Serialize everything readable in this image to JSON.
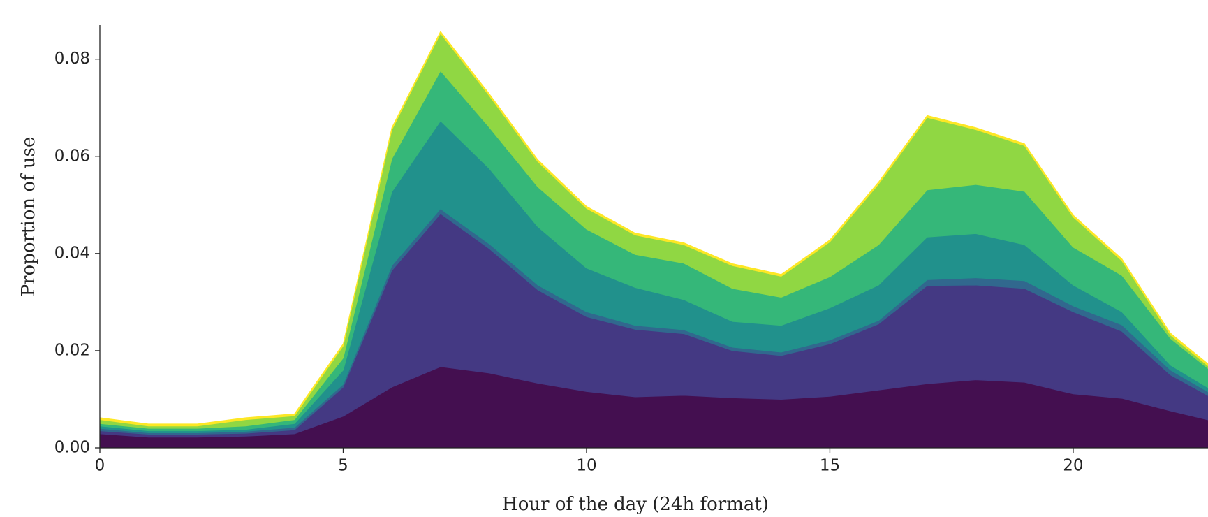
{
  "chart_data": {
    "type": "stacked_area",
    "xlabel": "Hour of the day (24h format)",
    "ylabel": "Proportion of use",
    "x": [
      0,
      1,
      2,
      3,
      4,
      5,
      6,
      7,
      8,
      9,
      10,
      11,
      12,
      13,
      14,
      15,
      16,
      17,
      18,
      19,
      20,
      21,
      22,
      23
    ],
    "series": [
      {
        "color": "#440f50",
        "values": [
          0.0029,
          0.0022,
          0.0022,
          0.0024,
          0.0029,
          0.0065,
          0.0125,
          0.0167,
          0.0154,
          0.0133,
          0.0116,
          0.0105,
          0.0108,
          0.0103,
          0.01,
          0.0106,
          0.0119,
          0.0132,
          0.014,
          0.0135,
          0.0111,
          0.0102,
          0.0076,
          0.0052
        ]
      },
      {
        "color": "#443983",
        "values": [
          0.0006,
          0.0006,
          0.0006,
          0.0006,
          0.0008,
          0.006,
          0.024,
          0.0315,
          0.0256,
          0.0192,
          0.0154,
          0.0139,
          0.0127,
          0.0097,
          0.009,
          0.0108,
          0.0136,
          0.0202,
          0.0195,
          0.0193,
          0.0169,
          0.0138,
          0.0074,
          0.0043
        ]
      },
      {
        "color": "#31688e",
        "values": [
          0.0005,
          0.0003,
          0.0003,
          0.0004,
          0.0005,
          0.0006,
          0.001,
          0.001,
          0.001,
          0.001,
          0.001,
          0.0008,
          0.0008,
          0.0007,
          0.0007,
          0.0008,
          0.0007,
          0.0012,
          0.0015,
          0.0016,
          0.0012,
          0.0013,
          0.001,
          0.0007
        ]
      },
      {
        "color": "#21918c",
        "values": [
          0.0005,
          0.0004,
          0.0004,
          0.0004,
          0.0008,
          0.0029,
          0.0152,
          0.0181,
          0.0155,
          0.012,
          0.009,
          0.0078,
          0.0062,
          0.0053,
          0.0055,
          0.0066,
          0.0073,
          0.0088,
          0.0091,
          0.0074,
          0.0043,
          0.0027,
          0.001,
          0.0008
        ]
      },
      {
        "color": "#35b779",
        "values": [
          0.0005,
          0.0005,
          0.0005,
          0.0007,
          0.0008,
          0.0025,
          0.0068,
          0.0103,
          0.0085,
          0.0082,
          0.008,
          0.0068,
          0.0075,
          0.0068,
          0.0058,
          0.0064,
          0.0083,
          0.0097,
          0.0101,
          0.011,
          0.0078,
          0.0075,
          0.0055,
          0.0035
        ]
      },
      {
        "color": "#90d743",
        "values": [
          0.0008,
          0.0005,
          0.0005,
          0.0013,
          0.0008,
          0.0025,
          0.006,
          0.0077,
          0.0065,
          0.0052,
          0.0043,
          0.004,
          0.0038,
          0.0047,
          0.0043,
          0.0072,
          0.0125,
          0.0149,
          0.0113,
          0.0094,
          0.0062,
          0.003,
          0.0007,
          0.0005
        ]
      },
      {
        "color": "#fde725",
        "values": [
          0.0004,
          0.0004,
          0.0004,
          0.0004,
          0.0004,
          0.0004,
          0.0004,
          0.0004,
          0.0004,
          0.0004,
          0.0004,
          0.0004,
          0.0004,
          0.0004,
          0.0004,
          0.0004,
          0.0004,
          0.0004,
          0.0004,
          0.0004,
          0.0004,
          0.0004,
          0.0004,
          0.0004
        ]
      }
    ],
    "xlim": [
      0,
      22.77
    ],
    "ylim": [
      0,
      0.087
    ],
    "xticks": [
      0,
      5,
      10,
      15,
      20
    ],
    "yticks": [
      {
        "value": 0,
        "label": "0.00"
      },
      {
        "value": 0.02,
        "label": "0.02"
      },
      {
        "value": 0.04,
        "label": "0.04"
      },
      {
        "value": 0.06,
        "label": "0.06"
      },
      {
        "value": 0.08,
        "label": "0.08"
      }
    ]
  }
}
